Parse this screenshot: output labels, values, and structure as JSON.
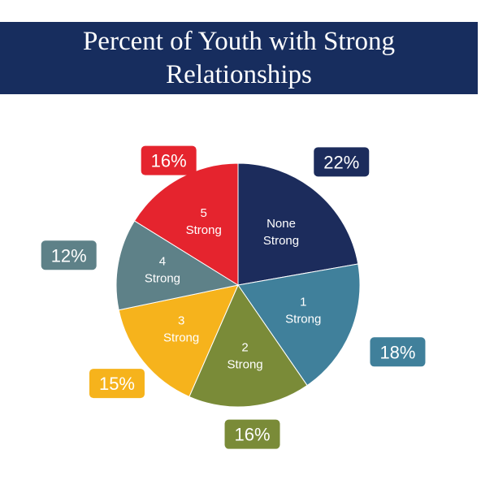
{
  "title": {
    "line1": "Percent of Youth with Strong",
    "line2": "Relationships"
  },
  "chart_data": {
    "type": "pie",
    "title": "Percent of Youth with Strong Relationships",
    "slices": [
      {
        "label_lines": [
          "None",
          "Strong"
        ],
        "value": 22,
        "percent": "22%",
        "color": "#1c2c5c"
      },
      {
        "label_lines": [
          "1",
          "Strong"
        ],
        "value": 18,
        "percent": "18%",
        "color": "#40809b"
      },
      {
        "label_lines": [
          "2",
          "Strong"
        ],
        "value": 16,
        "percent": "16%",
        "color": "#7a8b38"
      },
      {
        "label_lines": [
          "3",
          "Strong"
        ],
        "value": 15,
        "percent": "15%",
        "color": "#f6b31c"
      },
      {
        "label_lines": [
          "4",
          "Strong"
        ],
        "value": 12,
        "percent": "12%",
        "color": "#5e8188"
      },
      {
        "label_lines": [
          "5",
          "Strong"
        ],
        "value": 16,
        "percent": "16%",
        "color": "#e5242e"
      }
    ],
    "start": "12 o'clock",
    "direction": "clockwise"
  }
}
